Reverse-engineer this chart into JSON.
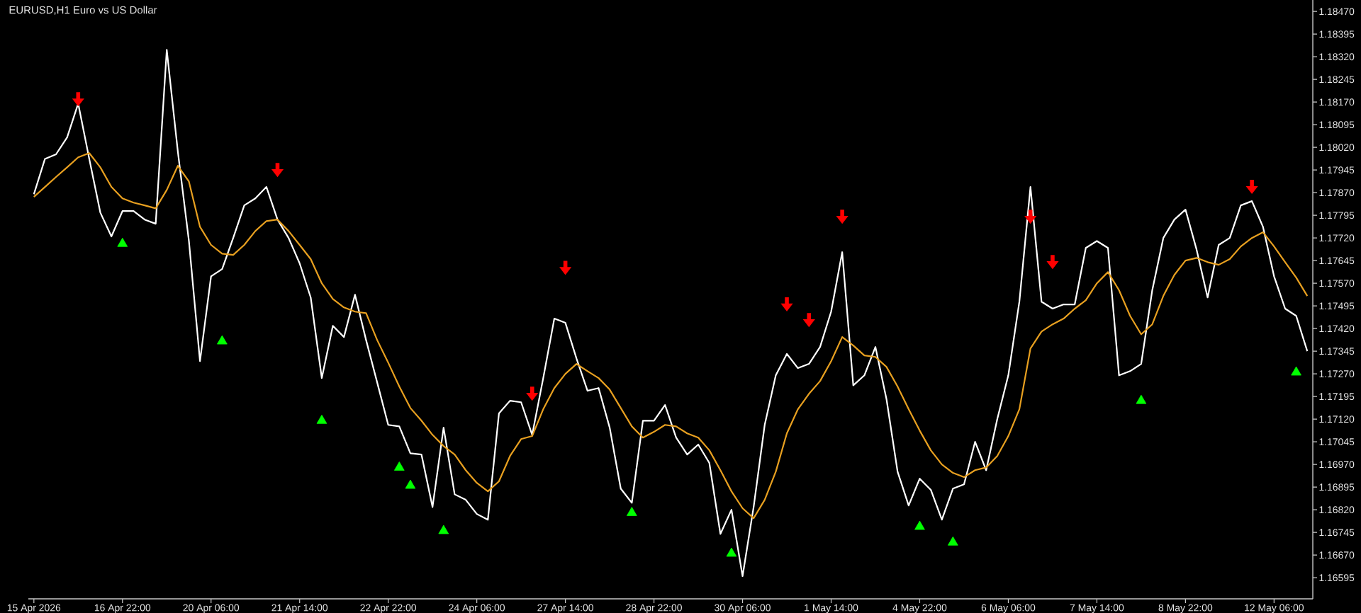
{
  "chart_data": {
    "type": "line",
    "title": "EURUSD,H1 Euro vs US Dollar",
    "categories": [
      "15 Apr 2026",
      null,
      null,
      null,
      null,
      null,
      null,
      null,
      "16 Apr 22:00",
      null,
      null,
      null,
      null,
      null,
      null,
      null,
      "20 Apr 06:00",
      null,
      null,
      null,
      null,
      null,
      null,
      null,
      "21 Apr 14:00",
      null,
      null,
      null,
      null,
      null,
      null,
      null,
      "22 Apr 22:00",
      null,
      null,
      null,
      null,
      null,
      null,
      null,
      "24 Apr 06:00",
      null,
      null,
      null,
      null,
      null,
      null,
      null,
      "27 Apr 14:00",
      null,
      null,
      null,
      null,
      null,
      null,
      null,
      "28 Apr 22:00",
      null,
      null,
      null,
      null,
      null,
      null,
      null,
      "30 Apr 06:00",
      null,
      null,
      null,
      null,
      null,
      null,
      null,
      "1 May 14:00",
      null,
      null,
      null,
      null,
      null,
      null,
      null,
      "4 May 22:00",
      null,
      null,
      null,
      null,
      null,
      null,
      null,
      "6 May 06:00",
      null,
      null,
      null,
      null,
      null,
      null,
      null,
      "7 May 14:00",
      null,
      null,
      null,
      null,
      null,
      null,
      null,
      "8 May 22:00",
      null,
      null,
      null,
      null,
      null,
      null,
      null,
      "12 May 06:00",
      null,
      null,
      null
    ],
    "ylim": [
      1.16525,
      1.18508
    ],
    "yticks": [
      1.16595,
      {
        "value": 1.1667,
        "label": "1.16670"
      },
      1.16745,
      {
        "value": 1.1682,
        "label": "1.16820"
      },
      1.16895,
      {
        "value": 1.1697,
        "label": "1.16970"
      },
      1.17045,
      {
        "value": 1.1712,
        "label": "1.17120"
      },
      1.17195,
      {
        "value": 1.1727,
        "label": "1.17270"
      },
      1.17345,
      {
        "value": 1.1742,
        "label": "1.17420"
      },
      1.17495,
      {
        "value": 1.1757,
        "label": "1.17570"
      },
      1.17645,
      {
        "value": 1.1772,
        "label": "1.17720"
      },
      1.17795,
      {
        "value": 1.1787,
        "label": "1.17870"
      },
      1.17945,
      {
        "value": 1.1802,
        "label": "1.18020"
      },
      1.18095,
      {
        "value": 1.1817,
        "label": "1.18170"
      },
      1.18245,
      {
        "value": 1.1832,
        "label": "1.18320"
      },
      1.18395,
      {
        "value": 1.1847,
        "label": "1.18470"
      }
    ],
    "series": [
      {
        "color": "#ffffff",
        "values": [
          1.17865,
          1.17982,
          1.17997,
          1.18053,
          1.18165,
          1.17982,
          1.17804,
          1.17725,
          1.17809,
          1.17809,
          1.17781,
          1.17767,
          1.18343,
          1.18006,
          1.1771,
          1.17312,
          1.17593,
          1.17617,
          1.1772,
          1.17828,
          1.17851,
          1.17889,
          1.17781,
          1.1772,
          1.17636,
          1.17523,
          1.17256,
          1.17429,
          1.17392,
          1.17532,
          1.17382,
          1.17242,
          1.17101,
          1.17096,
          1.17007,
          1.17003,
          1.16829,
          1.17092,
          1.16871,
          1.16853,
          1.16806,
          1.16787,
          1.17139,
          1.17181,
          1.17176,
          1.17068,
          1.17256,
          1.17453,
          1.17439,
          1.17321,
          1.17214,
          1.17223,
          1.17092,
          1.1689,
          1.16843,
          1.17115,
          1.17115,
          1.17167,
          1.17059,
          1.17003,
          1.17036,
          1.16975,
          1.1674,
          1.1682,
          1.166,
          1.16829,
          1.17101,
          1.17265,
          1.17336,
          1.17289,
          1.17303,
          1.17359,
          1.17476,
          1.17673,
          1.17232,
          1.17265,
          1.17359,
          1.17186,
          1.16946,
          1.16834,
          1.16923,
          1.16886,
          1.16787,
          1.1689,
          1.16904,
          1.17045,
          1.16951,
          1.1712,
          1.17265,
          1.17509,
          1.17889,
          1.17509,
          1.17486,
          1.175,
          1.175,
          1.17687,
          1.1771,
          1.17687,
          1.17265,
          1.17279,
          1.17303,
          1.17547,
          1.1772,
          1.17781,
          1.17814,
          1.17682,
          1.17523,
          1.17697,
          1.1772,
          1.17828,
          1.17842,
          1.17757,
          1.17593,
          1.17486,
          1.17462,
          1.17345
        ]
      },
      {
        "color": "#e8a020",
        "values": [
          1.17856,
          1.17889,
          1.17922,
          1.17954,
          1.17987,
          1.18001,
          1.17954,
          1.17889,
          1.17851,
          1.17837,
          1.17828,
          1.17818,
          1.17879,
          1.17959,
          1.17907,
          1.17757,
          1.17697,
          1.17668,
          1.17664,
          1.17697,
          1.17743,
          1.17776,
          1.17781,
          1.17743,
          1.17697,
          1.1765,
          1.1757,
          1.17518,
          1.1749,
          1.17476,
          1.17471,
          1.17382,
          1.17307,
          1.17228,
          1.17157,
          1.17115,
          1.17068,
          1.17031,
          1.17003,
          1.16951,
          1.16909,
          1.16881,
          1.16914,
          1.16998,
          1.17054,
          1.17064,
          1.17153,
          1.17223,
          1.1727,
          1.17303,
          1.17279,
          1.17256,
          1.17218,
          1.17157,
          1.17096,
          1.17059,
          1.17078,
          1.17101,
          1.17096,
          1.17073,
          1.17059,
          1.17017,
          1.16951,
          1.16881,
          1.16825,
          1.16792,
          1.16853,
          1.16946,
          1.17073,
          1.17153,
          1.17204,
          1.17246,
          1.17312,
          1.17392,
          1.17364,
          1.17331,
          1.17326,
          1.17293,
          1.17228,
          1.17153,
          1.17082,
          1.17017,
          1.1697,
          1.16942,
          1.16928,
          1.16951,
          1.1696,
          1.16998,
          1.17064,
          1.17153,
          1.17354,
          1.1741,
          1.17434,
          1.17453,
          1.17486,
          1.17514,
          1.1757,
          1.17607,
          1.17547,
          1.17462,
          1.17401,
          1.17434,
          1.17528,
          1.17598,
          1.17645,
          1.17654,
          1.1764,
          1.17631,
          1.1765,
          1.17692,
          1.1772,
          1.17739,
          1.17692,
          1.1764,
          1.17589,
          1.17528
        ]
      },
      {
        "type": "scatter",
        "color": "#ff0000",
        "values": [
          null,
          null,
          null,
          null,
          1.18179,
          null,
          null,
          null,
          null,
          null,
          null,
          null,
          null,
          null,
          null,
          null,
          null,
          null,
          null,
          null,
          null,
          null,
          1.17945,
          null,
          null,
          null,
          null,
          null,
          null,
          null,
          null,
          null,
          null,
          null,
          null,
          null,
          null,
          null,
          null,
          null,
          null,
          null,
          null,
          null,
          null,
          1.17204,
          null,
          null,
          1.17621,
          null,
          null,
          null,
          null,
          null,
          null,
          null,
          null,
          null,
          null,
          null,
          null,
          null,
          null,
          null,
          null,
          null,
          null,
          null,
          1.175,
          null,
          1.17448,
          null,
          null,
          1.1779,
          null,
          null,
          null,
          null,
          null,
          null,
          null,
          null,
          null,
          null,
          null,
          null,
          null,
          null,
          null,
          null,
          1.1779,
          null,
          1.1764,
          null,
          null,
          null,
          null,
          null,
          null,
          null,
          null,
          null,
          null,
          null,
          null,
          null,
          null,
          null,
          null,
          null,
          1.17889,
          null,
          null,
          null,
          null,
          null
        ]
      },
      {
        "type": "scatter",
        "color": "#00ff00",
        "marker": "triangle",
        "values": [
          null,
          null,
          null,
          null,
          null,
          null,
          null,
          null,
          1.17701,
          null,
          null,
          null,
          null,
          null,
          null,
          null,
          null,
          1.17378,
          null,
          null,
          null,
          null,
          null,
          null,
          null,
          null,
          1.17115,
          null,
          null,
          null,
          null,
          null,
          null,
          1.1696,
          1.169,
          null,
          null,
          1.1675,
          null,
          null,
          null,
          null,
          null,
          null,
          null,
          null,
          null,
          null,
          null,
          null,
          null,
          null,
          null,
          null,
          1.1681,
          null,
          null,
          null,
          null,
          null,
          null,
          null,
          null,
          1.16675,
          null,
          null,
          null,
          null,
          null,
          null,
          null,
          null,
          null,
          null,
          null,
          null,
          null,
          null,
          null,
          null,
          1.16764,
          null,
          null,
          1.16712,
          null,
          null,
          null,
          null,
          null,
          null,
          null,
          null,
          null,
          null,
          null,
          null,
          null,
          null,
          null,
          null,
          1.17181,
          null,
          null,
          null,
          null,
          null,
          null,
          null,
          null,
          null,
          null,
          null,
          null,
          null,
          1.17275,
          null
        ]
      }
    ]
  }
}
